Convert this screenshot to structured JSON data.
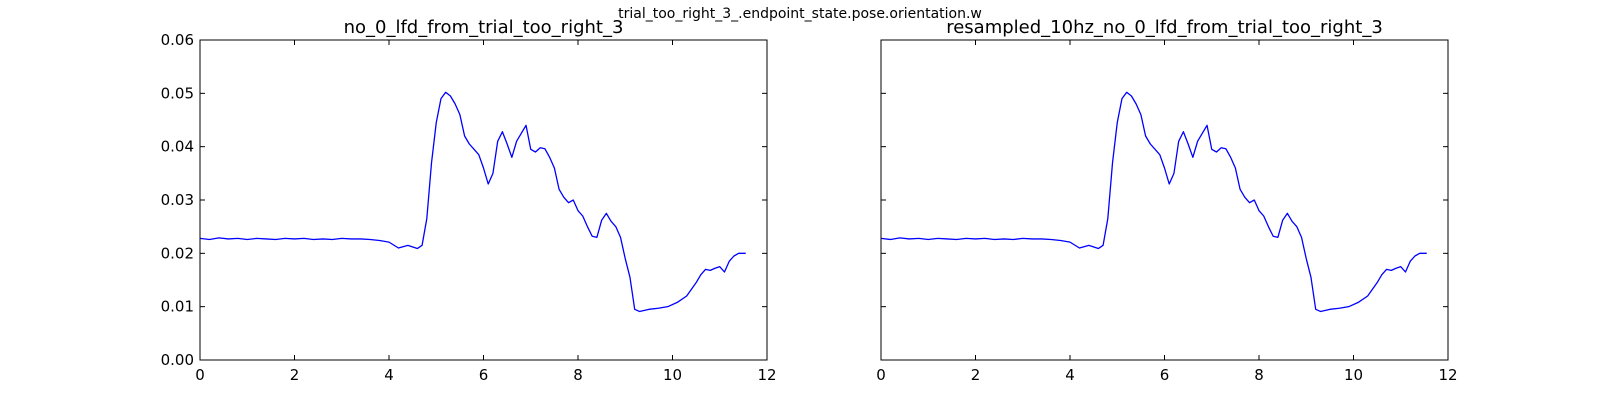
{
  "suptitle": "trial_too_right_3_.endpoint_state.pose.orientation.w",
  "chart_data": [
    {
      "type": "line",
      "title": "no_0_lfd_from_trial_too_right_3",
      "xlabel": "",
      "ylabel": "",
      "xlim": [
        0,
        12
      ],
      "ylim": [
        0.0,
        0.06
      ],
      "x_ticks": [
        "0",
        "2",
        "4",
        "6",
        "8",
        "10",
        "12"
      ],
      "y_ticks": [
        "0.00",
        "0.01",
        "0.02",
        "0.03",
        "0.04",
        "0.05",
        "0.06"
      ],
      "grid": false,
      "color": "#0000ff",
      "series": [
        {
          "x": [
            0.0,
            0.2,
            0.4,
            0.6,
            0.8,
            1.0,
            1.2,
            1.4,
            1.6,
            1.8,
            2.0,
            2.2,
            2.4,
            2.6,
            2.8,
            3.0,
            3.2,
            3.4,
            3.6,
            3.8,
            4.0,
            4.2,
            4.4,
            4.6,
            4.7,
            4.8,
            4.9,
            5.0,
            5.1,
            5.2,
            5.3,
            5.4,
            5.5,
            5.6,
            5.7,
            5.8,
            5.9,
            6.0,
            6.1,
            6.2,
            6.3,
            6.4,
            6.5,
            6.6,
            6.7,
            6.8,
            6.9,
            7.0,
            7.1,
            7.2,
            7.3,
            7.4,
            7.5,
            7.6,
            7.7,
            7.8,
            7.9,
            8.0,
            8.1,
            8.2,
            8.3,
            8.4,
            8.5,
            8.6,
            8.7,
            8.8,
            8.9,
            9.0,
            9.1,
            9.2,
            9.3,
            9.5,
            9.7,
            9.9,
            10.1,
            10.3,
            10.5,
            10.6,
            10.7,
            10.8,
            10.9,
            11.0,
            11.1,
            11.2,
            11.3,
            11.4,
            11.5,
            11.55
          ],
          "y": [
            0.0228,
            0.0226,
            0.0229,
            0.0227,
            0.0228,
            0.0226,
            0.0228,
            0.0227,
            0.0226,
            0.0228,
            0.0227,
            0.0228,
            0.0226,
            0.0227,
            0.0226,
            0.0228,
            0.0227,
            0.0227,
            0.0226,
            0.0224,
            0.0221,
            0.021,
            0.0215,
            0.0209,
            0.0215,
            0.0265,
            0.037,
            0.0445,
            0.049,
            0.0502,
            0.0495,
            0.048,
            0.046,
            0.042,
            0.0405,
            0.0395,
            0.0385,
            0.036,
            0.033,
            0.035,
            0.041,
            0.0428,
            0.0405,
            0.038,
            0.041,
            0.0425,
            0.044,
            0.0395,
            0.039,
            0.0398,
            0.0396,
            0.038,
            0.036,
            0.032,
            0.0305,
            0.0295,
            0.03,
            0.028,
            0.027,
            0.025,
            0.0232,
            0.023,
            0.0262,
            0.0275,
            0.026,
            0.025,
            0.023,
            0.019,
            0.0155,
            0.0095,
            0.0091,
            0.0095,
            0.0097,
            0.01,
            0.0108,
            0.012,
            0.0145,
            0.016,
            0.017,
            0.0168,
            0.0172,
            0.0175,
            0.0165,
            0.0185,
            0.0195,
            0.02,
            0.02,
            0.02
          ]
        }
      ]
    },
    {
      "type": "line",
      "title": "resampled_10hz_no_0_lfd_from_trial_too_right_3",
      "xlabel": "",
      "ylabel": "",
      "xlim": [
        0,
        12
      ],
      "ylim": [
        0.0,
        0.06
      ],
      "x_ticks": [
        "0",
        "2",
        "4",
        "6",
        "8",
        "10",
        "12"
      ],
      "y_ticks": [],
      "grid": false,
      "color": "#0000ff",
      "series": [
        {
          "x": [
            0.0,
            0.2,
            0.4,
            0.6,
            0.8,
            1.0,
            1.2,
            1.4,
            1.6,
            1.8,
            2.0,
            2.2,
            2.4,
            2.6,
            2.8,
            3.0,
            3.2,
            3.4,
            3.6,
            3.8,
            4.0,
            4.2,
            4.4,
            4.6,
            4.7,
            4.8,
            4.9,
            5.0,
            5.1,
            5.2,
            5.3,
            5.4,
            5.5,
            5.6,
            5.7,
            5.8,
            5.9,
            6.0,
            6.1,
            6.2,
            6.3,
            6.4,
            6.5,
            6.6,
            6.7,
            6.8,
            6.9,
            7.0,
            7.1,
            7.2,
            7.3,
            7.4,
            7.5,
            7.6,
            7.7,
            7.8,
            7.9,
            8.0,
            8.1,
            8.2,
            8.3,
            8.4,
            8.5,
            8.6,
            8.7,
            8.8,
            8.9,
            9.0,
            9.1,
            9.2,
            9.3,
            9.5,
            9.7,
            9.9,
            10.1,
            10.3,
            10.5,
            10.6,
            10.7,
            10.8,
            10.9,
            11.0,
            11.1,
            11.2,
            11.3,
            11.4,
            11.5,
            11.55
          ],
          "y": [
            0.0228,
            0.0226,
            0.0229,
            0.0227,
            0.0228,
            0.0226,
            0.0228,
            0.0227,
            0.0226,
            0.0228,
            0.0227,
            0.0228,
            0.0226,
            0.0227,
            0.0226,
            0.0228,
            0.0227,
            0.0227,
            0.0226,
            0.0224,
            0.0221,
            0.021,
            0.0215,
            0.0209,
            0.0215,
            0.0265,
            0.037,
            0.0445,
            0.049,
            0.0502,
            0.0495,
            0.048,
            0.046,
            0.042,
            0.0405,
            0.0395,
            0.0385,
            0.036,
            0.033,
            0.035,
            0.041,
            0.0428,
            0.0405,
            0.038,
            0.041,
            0.0425,
            0.044,
            0.0395,
            0.039,
            0.0398,
            0.0396,
            0.038,
            0.036,
            0.032,
            0.0305,
            0.0295,
            0.03,
            0.028,
            0.027,
            0.025,
            0.0232,
            0.023,
            0.0262,
            0.0275,
            0.026,
            0.025,
            0.023,
            0.019,
            0.0155,
            0.0095,
            0.0091,
            0.0095,
            0.0097,
            0.01,
            0.0108,
            0.012,
            0.0145,
            0.016,
            0.017,
            0.0168,
            0.0172,
            0.0175,
            0.0165,
            0.0185,
            0.0195,
            0.02,
            0.02,
            0.02
          ]
        }
      ]
    }
  ]
}
